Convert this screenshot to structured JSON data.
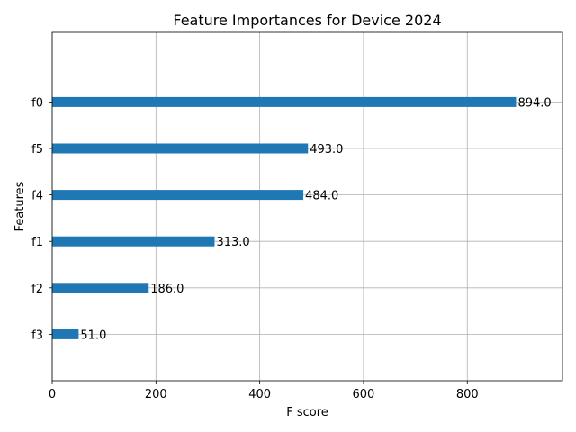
{
  "chart_data": {
    "type": "bar",
    "orientation": "horizontal",
    "title": "Feature Importances for Device 2024",
    "xlabel": "F score",
    "ylabel": "Features",
    "categories": [
      "f3",
      "f2",
      "f1",
      "f4",
      "f5",
      "f0"
    ],
    "values": [
      51.0,
      186.0,
      313.0,
      484.0,
      493.0,
      894.0
    ],
    "data_labels": [
      "51.0",
      "186.0",
      "313.0",
      "484.0",
      "493.0",
      "894.0"
    ],
    "xlim": [
      0,
      983.4
    ],
    "xticks": [
      0,
      200,
      400,
      600,
      800
    ],
    "xtick_labels": [
      "0",
      "200",
      "400",
      "600",
      "800"
    ],
    "grid": true,
    "bar_color": "#1f77b4"
  }
}
